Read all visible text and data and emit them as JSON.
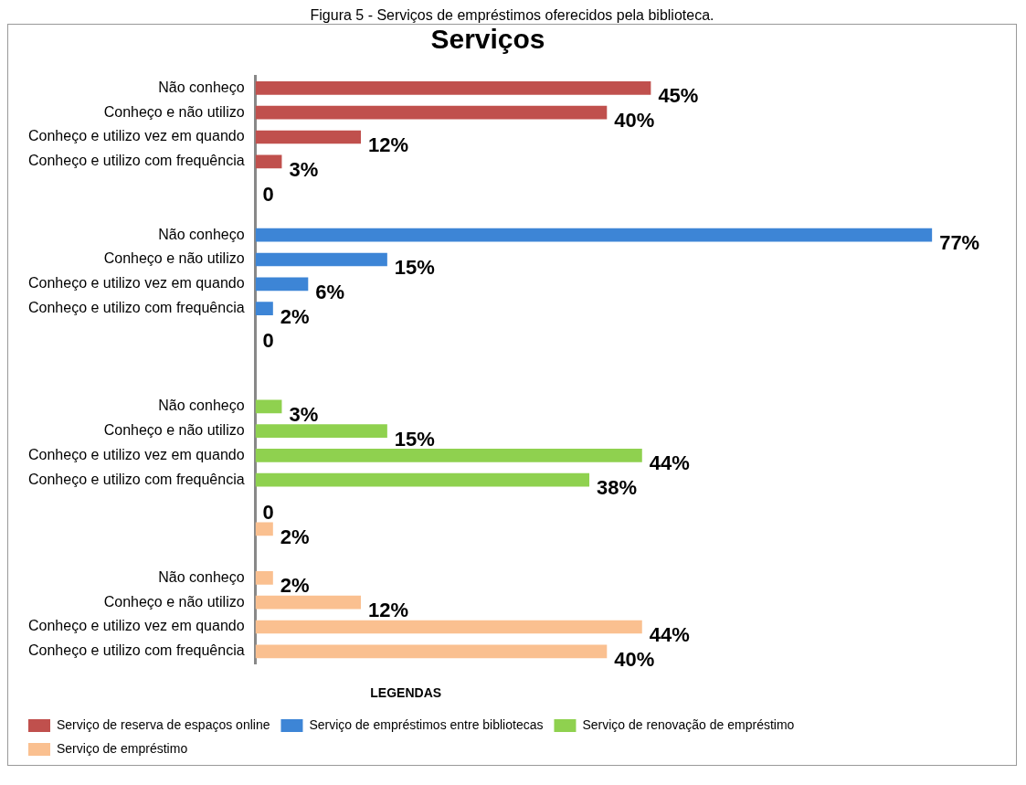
{
  "chart_data": {
    "type": "bar",
    "orientation": "horizontal",
    "stacked": true,
    "title": "Serviços",
    "legend_title": "LEGENDAS",
    "legend": "bottom",
    "grid": false,
    "tick_labels": "y",
    "annotations": [
      "Figura 5 - Serviços de empréstimos oferecidos pela biblioteca."
    ],
    "categories": [
      "Não conheço",
      "Conheço e não utilizo",
      "Conheço e utilizo vez em quando",
      "Conheço e utilizo com frequência",
      null,
      null,
      "Não conheço",
      "Conheço e não utilizo",
      "Conheço e utilizo vez em quando",
      "Conheço e utilizo com frequência",
      null,
      null,
      null,
      "Não conheço",
      "Conheço e não utilizo",
      "Conheço e utilizo vez em quando",
      "Conheço e utilizo com frequência",
      null,
      null,
      null,
      "Não conheço",
      "Conheço e não utilizo",
      "Conheço e utilizo vez em quando",
      "Conheço e utilizo com frequência"
    ],
    "series": [
      {
        "name": "Serviço de reserva de espaços online",
        "color": "#c0504d",
        "values": [
          45,
          40,
          12,
          3,
          0,
          null,
          null,
          null,
          null,
          null,
          null,
          null,
          null,
          null,
          null,
          null,
          null,
          null,
          null,
          null,
          null,
          null,
          null,
          null
        ],
        "value_labels": [
          "45%",
          "40%",
          "12%",
          "3%",
          "0",
          null,
          null,
          null,
          null,
          null,
          null,
          null,
          null,
          null,
          null,
          null,
          null,
          null,
          null,
          null,
          null,
          null,
          null,
          null
        ]
      },
      {
        "name": "Serviço de empréstimos entre bibliotecas",
        "color": "#3d85d6",
        "values": [
          null,
          null,
          null,
          null,
          null,
          null,
          77,
          15,
          6,
          2,
          0,
          null,
          null,
          null,
          null,
          null,
          null,
          null,
          null,
          null,
          null,
          null,
          null,
          null
        ],
        "value_labels": [
          null,
          null,
          null,
          null,
          null,
          null,
          "77%",
          "15%",
          "6%",
          "2%",
          "0",
          null,
          null,
          null,
          null,
          null,
          null,
          null,
          null,
          null,
          null,
          null,
          null,
          null
        ]
      },
      {
        "name": "Serviço de renovação de empréstimo",
        "color": "#8fd14f",
        "values": [
          null,
          null,
          null,
          null,
          null,
          null,
          null,
          null,
          null,
          null,
          null,
          null,
          null,
          3,
          15,
          44,
          38,
          0,
          null,
          null,
          null,
          null,
          null,
          null
        ],
        "value_labels": [
          null,
          null,
          null,
          null,
          null,
          null,
          null,
          null,
          null,
          null,
          null,
          null,
          null,
          "3%",
          "15%",
          "44%",
          "38%",
          "0",
          null,
          null,
          null,
          null,
          null,
          null
        ]
      },
      {
        "name": "Serviço de empréstimo",
        "color": "#fac090",
        "values": [
          null,
          null,
          null,
          null,
          null,
          null,
          null,
          null,
          null,
          null,
          null,
          null,
          null,
          null,
          null,
          null,
          null,
          null,
          2,
          null,
          2,
          12,
          44,
          40
        ],
        "value_labels": [
          null,
          null,
          null,
          null,
          null,
          null,
          null,
          null,
          null,
          null,
          null,
          null,
          null,
          null,
          null,
          null,
          null,
          null,
          "2%",
          null,
          "2%",
          "12%",
          "44%",
          "40%"
        ]
      }
    ]
  }
}
